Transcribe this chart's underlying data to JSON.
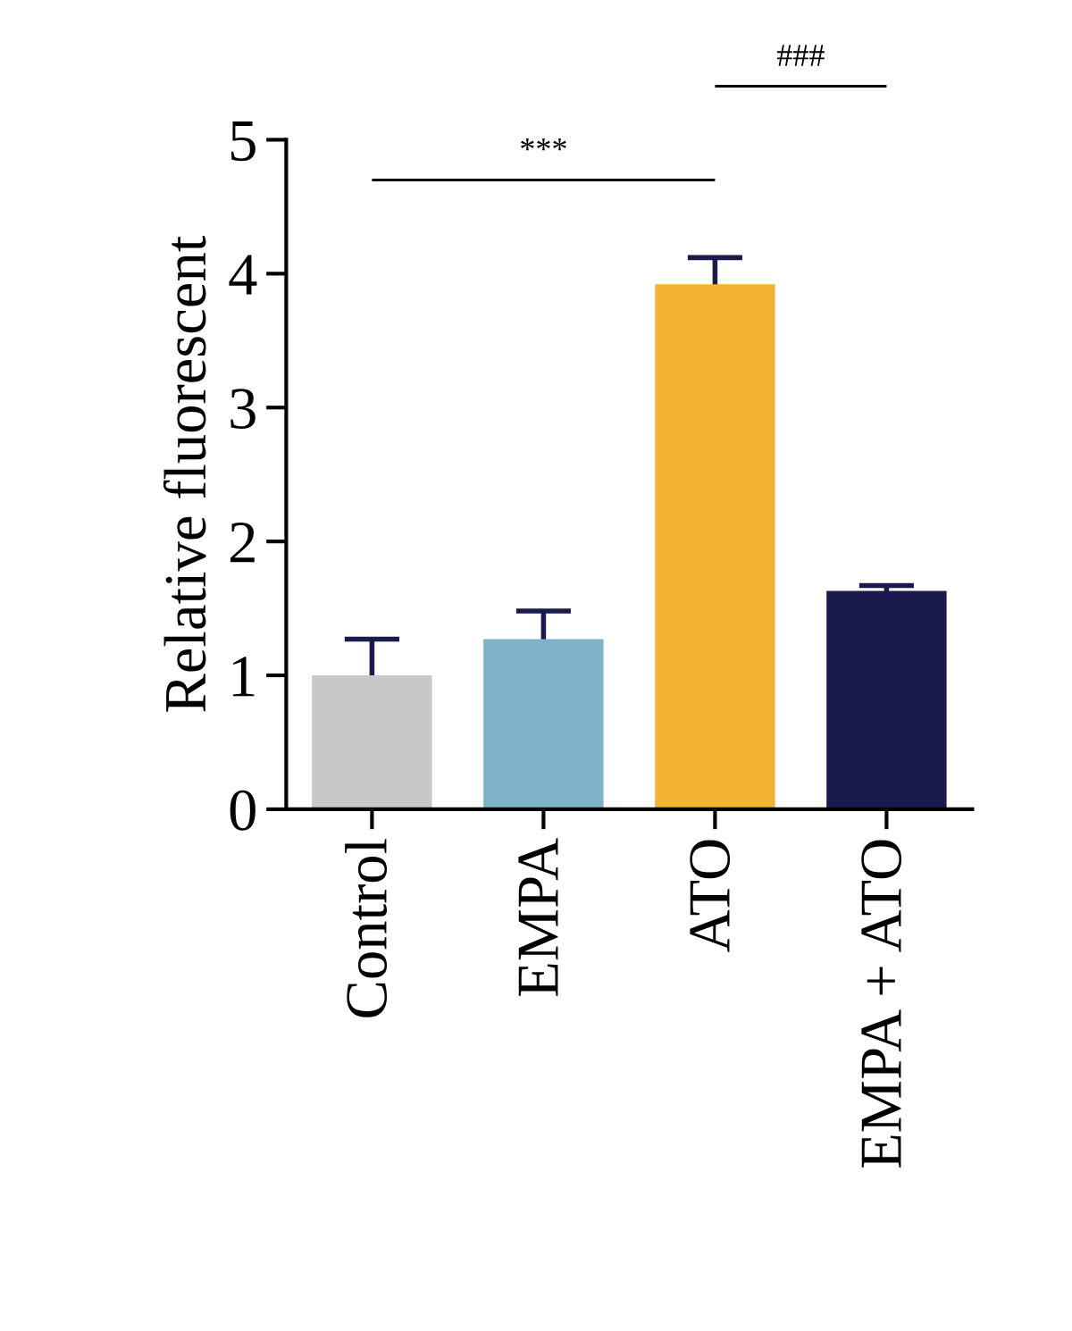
{
  "chart_data": {
    "type": "bar",
    "ylabel": "Relative fluorescent",
    "categories": [
      "Control",
      "EMPA",
      "ATO",
      "EMPA + ATO"
    ],
    "values": [
      1.0,
      1.27,
      3.92,
      1.63
    ],
    "errors": [
      0.27,
      0.21,
      0.2,
      0.04
    ],
    "colors": [
      "#c8c8c8",
      "#7eb2c6",
      "#f2b233",
      "#1a1a4e"
    ],
    "ylim": [
      0,
      5
    ],
    "yticks": [
      0,
      1,
      2,
      3,
      4,
      5
    ],
    "grid": false,
    "annotations": [
      "***",
      "###"
    ]
  }
}
